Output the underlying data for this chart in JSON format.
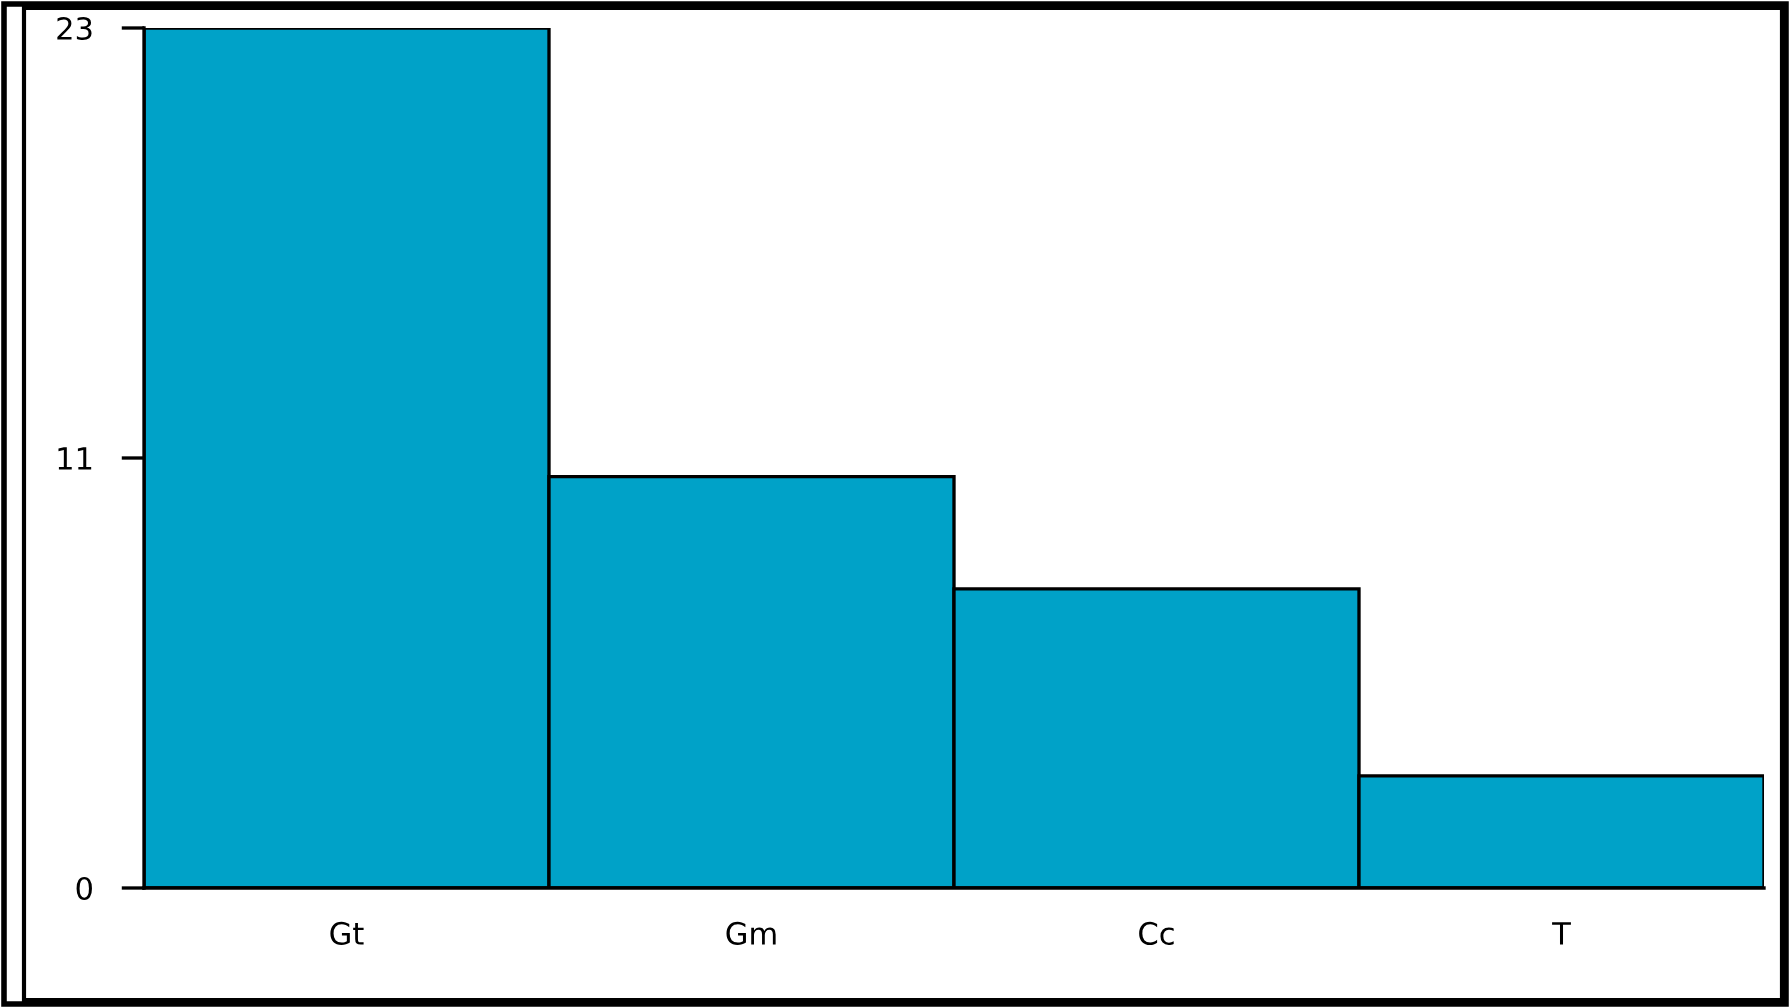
{
  "chart_data": {
    "type": "bar",
    "categories": [
      "Gt",
      "Gm",
      "Cc",
      "T"
    ],
    "values": [
      23,
      11,
      8,
      3
    ],
    "color": "#00a2c8",
    "ylim": [
      0,
      23
    ],
    "yticks": [
      0,
      {
        "value": 11.5,
        "label": "11"
      },
      23
    ],
    "grid": false
  }
}
